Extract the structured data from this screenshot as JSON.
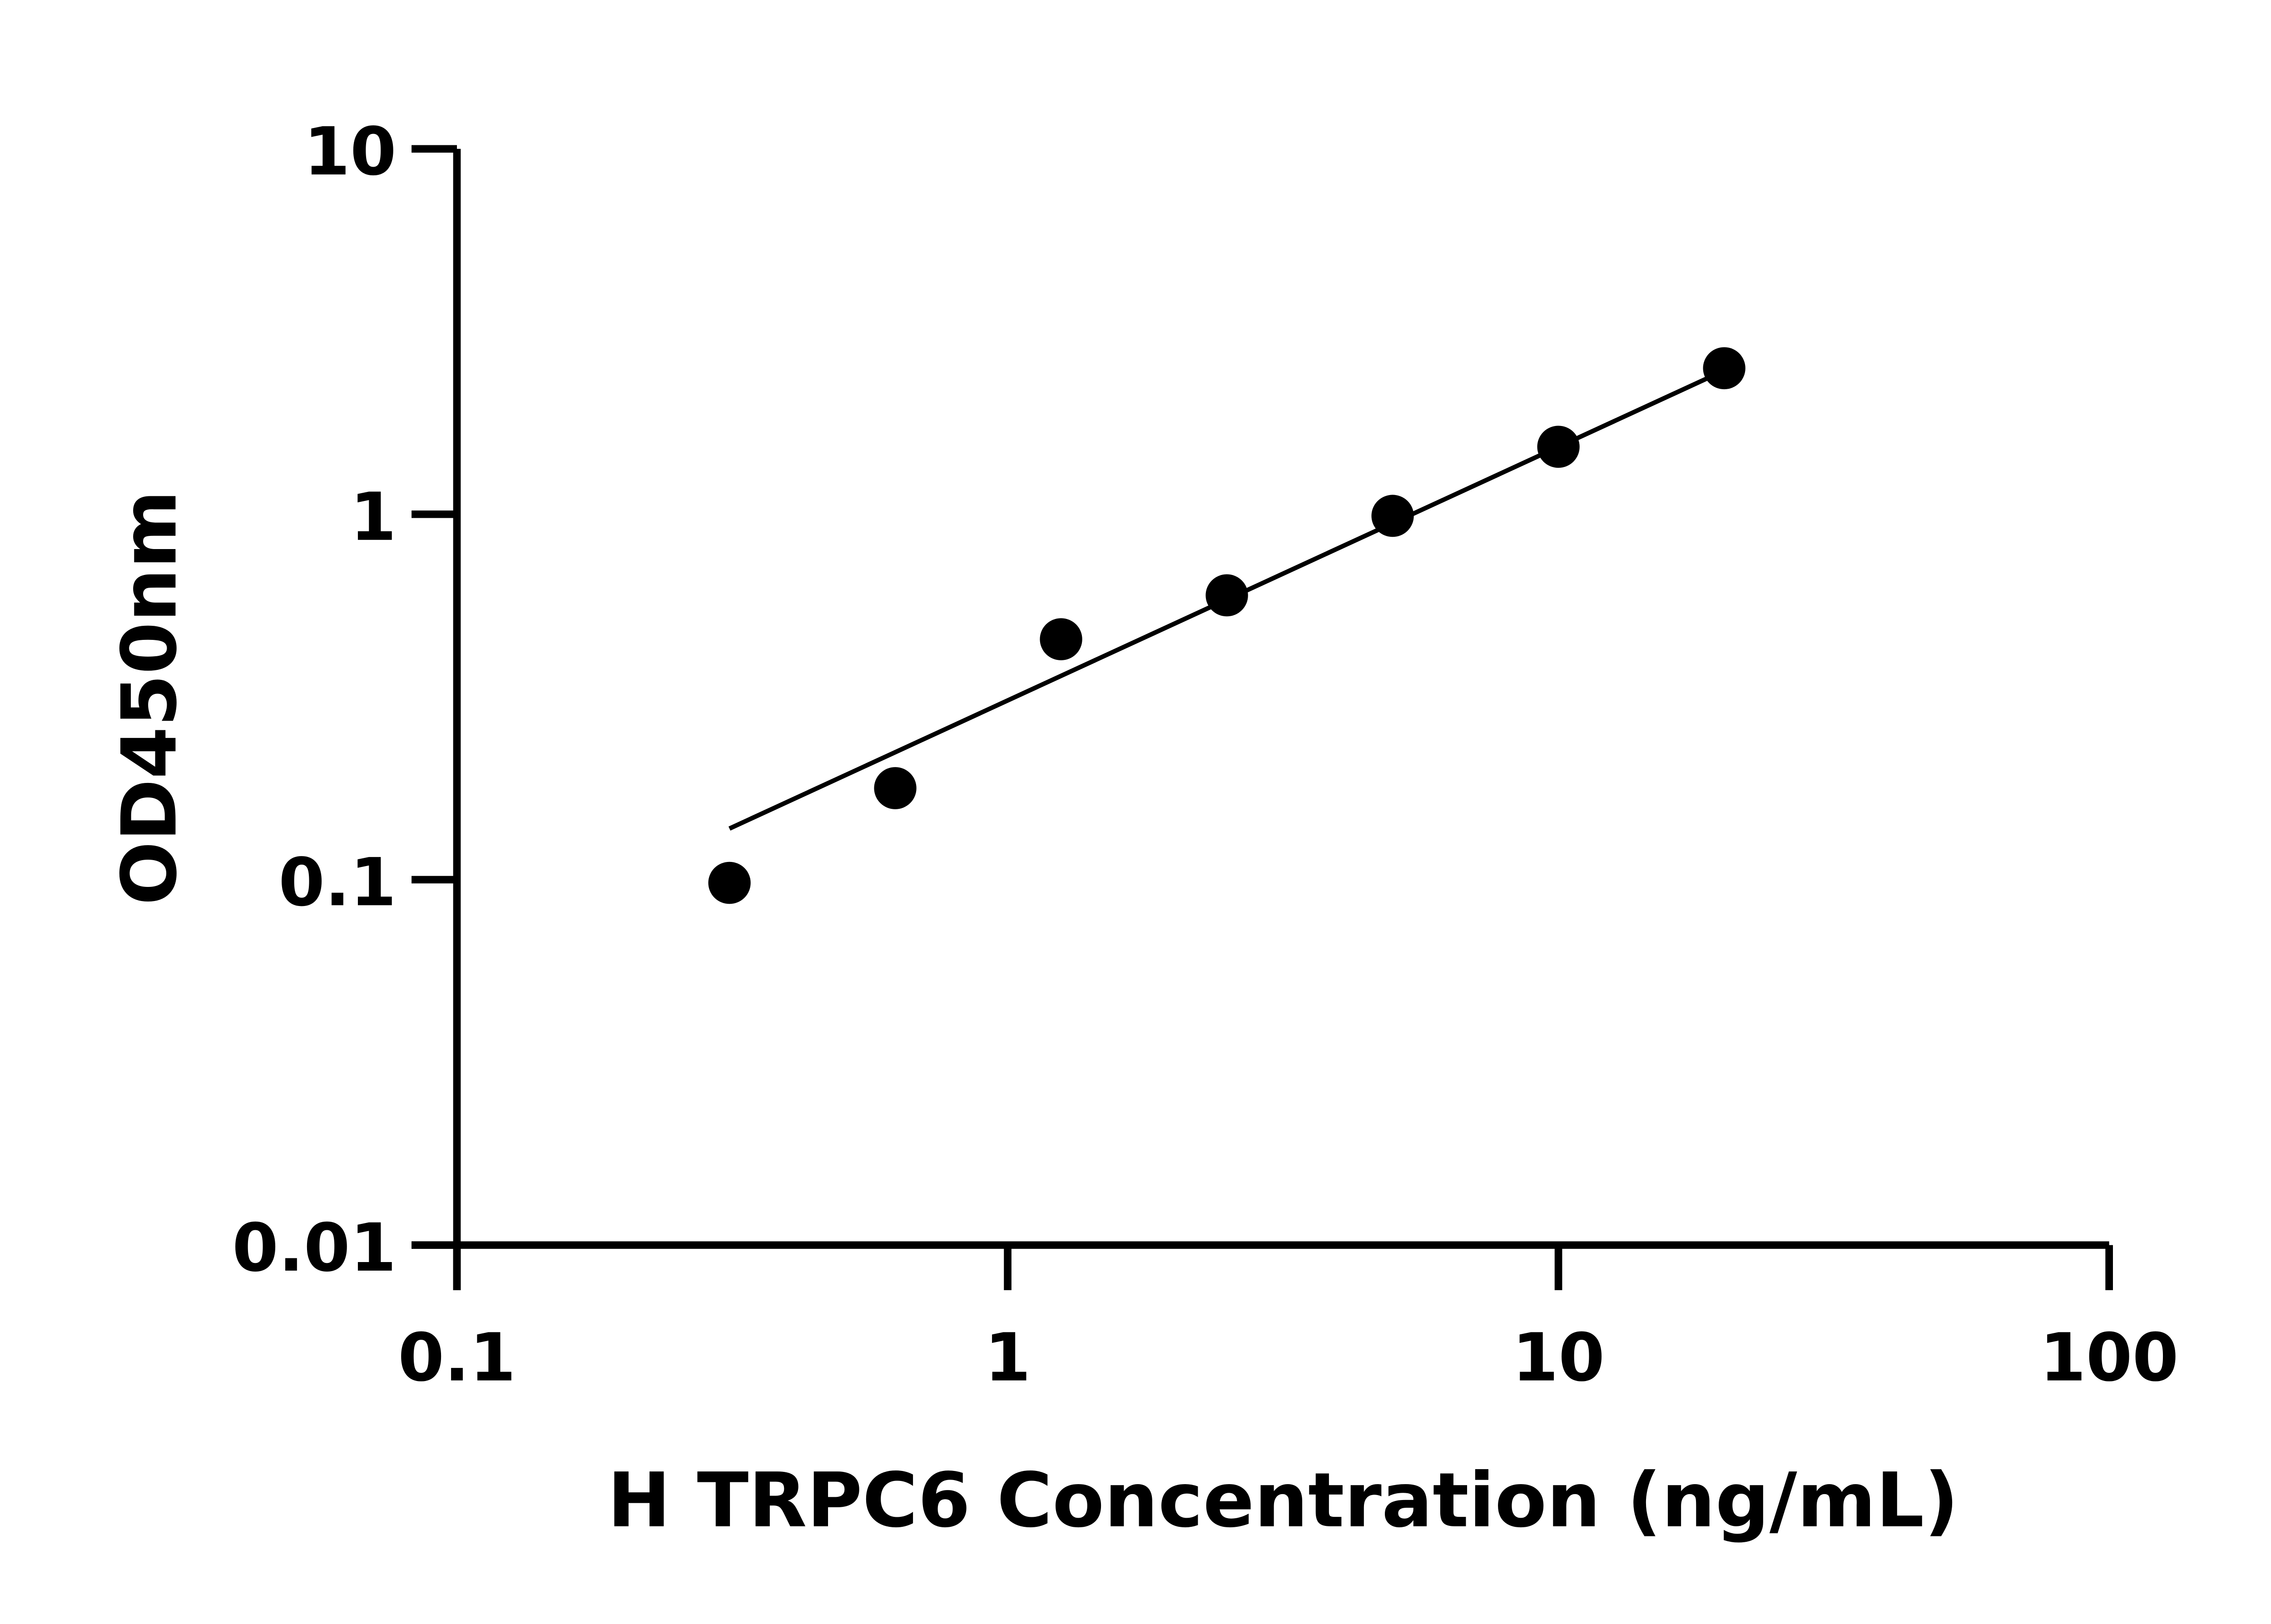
{
  "chart_data": {
    "type": "scatter",
    "title": "",
    "xlabel": "H TRPC6 Concentration (ng/mL)",
    "ylabel": "OD450nm",
    "x_scale": "log",
    "y_scale": "log",
    "xlim": [
      0.1,
      100
    ],
    "ylim": [
      0.01,
      10
    ],
    "x_ticks": [
      "0.1",
      "1",
      "10",
      "100"
    ],
    "y_ticks": [
      "0.01",
      "0.1",
      "1",
      "10"
    ],
    "grid": false,
    "points": {
      "x": [
        0.3125,
        0.625,
        1.25,
        2.5,
        5,
        10,
        20
      ],
      "y": [
        0.098,
        0.178,
        0.455,
        0.6,
        0.99,
        1.53,
        2.51
      ]
    },
    "fit_line": {
      "x": [
        0.3125,
        18.8
      ],
      "y": [
        0.138,
        2.37
      ]
    },
    "colors": {
      "points": "#000000",
      "line": "#000000"
    }
  }
}
